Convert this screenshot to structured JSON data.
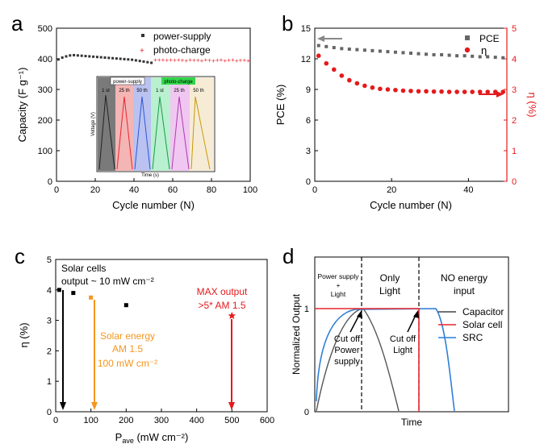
{
  "panels": {
    "a": "a",
    "b": "b",
    "c": "c",
    "d": "d"
  },
  "colors": {
    "power_supply": "#333333",
    "photo_charge": "#e8262f",
    "pce": "#666666",
    "eta": "#e41a1c",
    "capacitor": "#444444",
    "solar_cell": "#e8262f",
    "src": "#2f7fd6",
    "solar_energy": "#f5961e",
    "max_output": "#e41a1c"
  },
  "chart_data": [
    {
      "panel": "a",
      "type": "scatter",
      "xlabel": "Cycle number (N)",
      "ylabel": "Capacity (F g⁻¹)",
      "xlim": [
        0,
        100
      ],
      "ylim": [
        0,
        500
      ],
      "xticks": [
        0,
        20,
        40,
        60,
        80,
        100
      ],
      "yticks": [
        0,
        100,
        200,
        300,
        400,
        500
      ],
      "legend_position": "top-right",
      "series": [
        {
          "name": "power-supply",
          "x": [
            1,
            3,
            5,
            7,
            9,
            11,
            13,
            15,
            17,
            19,
            21,
            23,
            25,
            27,
            29,
            31,
            33,
            35,
            37,
            39,
            41,
            43,
            45,
            47,
            49
          ],
          "values": [
            398,
            404,
            408,
            411,
            412,
            411,
            410,
            409,
            408,
            407,
            406,
            405,
            404,
            403,
            402,
            401,
            400,
            399,
            398,
            397,
            395,
            393,
            391,
            389,
            387
          ]
        },
        {
          "name": "photo-charge",
          "x": [
            51,
            53,
            55,
            57,
            59,
            61,
            63,
            65,
            67,
            69,
            71,
            73,
            75,
            77,
            79,
            81,
            83,
            85,
            87,
            89,
            91,
            93,
            95,
            97,
            99
          ],
          "values": [
            398,
            397,
            397,
            396,
            398,
            396,
            397,
            396,
            395,
            397,
            396,
            396,
            395,
            397,
            396,
            395,
            396,
            397,
            395,
            396,
            397,
            395,
            396,
            396,
            395
          ]
        }
      ],
      "inset": {
        "xlabel": "Time (s)",
        "ylabel": "Voltage (V)",
        "groups": [
          "power-supply",
          "photo-charge"
        ],
        "segments": [
          "1 st",
          "25 th",
          "50 th",
          "1 st",
          "25 th",
          "50 th"
        ]
      }
    },
    {
      "panel": "b",
      "type": "scatter",
      "xlabel": "Cycle number (N)",
      "ylabel": "PCE (%)",
      "ylabel_right": "η (%)",
      "xlim": [
        0,
        50
      ],
      "ylim": [
        0,
        15
      ],
      "ylim_right": [
        0,
        5
      ],
      "xticks": [
        0,
        20,
        40
      ],
      "yticks": [
        0,
        3,
        6,
        9,
        12,
        15
      ],
      "yticks_right": [
        0,
        1,
        2,
        3,
        4,
        5
      ],
      "legend_position": "top-right",
      "series": [
        {
          "name": "PCE",
          "axis": "left",
          "x": [
            1,
            3,
            5,
            7,
            9,
            11,
            13,
            15,
            17,
            19,
            21,
            23,
            25,
            27,
            29,
            31,
            33,
            35,
            37,
            39,
            41,
            43,
            45,
            47,
            49
          ],
          "values": [
            13.3,
            13.2,
            13.1,
            13.0,
            12.95,
            12.9,
            12.85,
            12.8,
            12.75,
            12.7,
            12.65,
            12.6,
            12.55,
            12.5,
            12.45,
            12.4,
            12.4,
            12.35,
            12.3,
            12.3,
            12.25,
            12.2,
            12.2,
            12.15,
            12.1
          ]
        },
        {
          "name": "η",
          "axis": "right",
          "x": [
            1,
            3,
            5,
            7,
            9,
            11,
            13,
            15,
            17,
            19,
            21,
            23,
            25,
            27,
            29,
            31,
            33,
            35,
            37,
            39,
            41,
            43,
            45,
            47,
            49
          ],
          "values": [
            4.1,
            3.85,
            3.65,
            3.45,
            3.3,
            3.2,
            3.12,
            3.06,
            3.02,
            3.0,
            2.98,
            2.96,
            2.95,
            2.94,
            2.94,
            2.93,
            2.93,
            2.92,
            2.92,
            2.92,
            2.92,
            2.92,
            2.92,
            2.92,
            2.92
          ]
        }
      ]
    },
    {
      "panel": "c",
      "type": "scatter",
      "xlabel": "P",
      "xlabel_sub": "ave",
      "xlabel_unit": " (mW cm⁻²)",
      "ylabel": "η (%)",
      "xlim": [
        0,
        600
      ],
      "ylim": [
        0,
        5
      ],
      "xticks": [
        0,
        100,
        200,
        300,
        400,
        500,
        600
      ],
      "yticks": [
        0,
        1,
        2,
        3,
        4,
        5
      ],
      "points": [
        {
          "x": 10,
          "y": 4.0,
          "marker": "square",
          "color": "#000000"
        },
        {
          "x": 50,
          "y": 3.9,
          "marker": "square",
          "color": "#000000"
        },
        {
          "x": 100,
          "y": 3.75,
          "marker": "square",
          "color": "#f5961e"
        },
        {
          "x": 200,
          "y": 3.5,
          "marker": "square",
          "color": "#000000"
        },
        {
          "x": 500,
          "y": 3.15,
          "marker": "star",
          "color": "#e41a1c"
        }
      ],
      "annotations": {
        "solar_cells_1": "Solar cells",
        "solar_cells_2": "output ~ 10 mW cm⁻²",
        "solar_energy_1": "Solar energy",
        "solar_energy_2": "AM 1.5",
        "solar_energy_3": "100 mW cm⁻²",
        "max_output_1": "MAX output",
        "max_output_2": ">5* AM 1.5"
      }
    },
    {
      "panel": "d",
      "type": "line",
      "xlabel": "Time",
      "ylabel": "Normalized Output",
      "ylim": [
        0,
        1.5
      ],
      "yticks": [
        0,
        1
      ],
      "regions": {
        "r1_line1": "Power supply",
        "r1_line2": "+",
        "r1_line3": "Light",
        "r2_line1": "Only",
        "r2_line2": "Light",
        "r3_line1": "NO energy",
        "r3_line2": "input"
      },
      "annotations": {
        "cutoff_power_1": "Cut off",
        "cutoff_power_2": "Power",
        "cutoff_power_3": "supply",
        "cutoff_light_1": "Cut off",
        "cutoff_light_2": "Light"
      },
      "series": [
        {
          "name": "Capacitor"
        },
        {
          "name": "Solar cell"
        },
        {
          "name": "SRC"
        }
      ]
    }
  ]
}
